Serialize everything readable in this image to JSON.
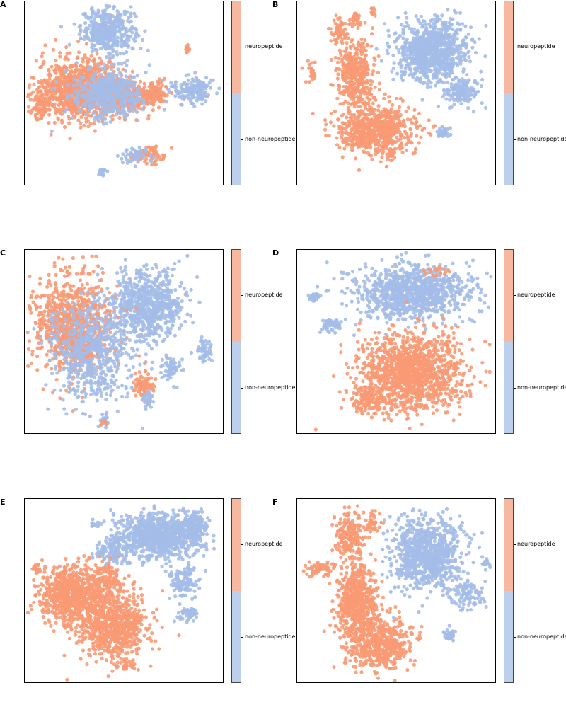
{
  "colors": {
    "neuropeptide": "#f89a74",
    "non_neuropeptide": "#a4bde8",
    "cbar_neuropeptide": "#f6b9a0",
    "cbar_non_neuropeptide": "#bccfec"
  },
  "chart_data": [
    {
      "type": "scatter",
      "panel": "A",
      "legend_labels": [
        "neuropeptide",
        "non-neuropeptide"
      ],
      "clusters": [
        {
          "label": "non-neuropeptide",
          "cx": 0.42,
          "cy": 0.84,
          "sx": 0.09,
          "sy": 0.08,
          "n": 420
        },
        {
          "label": "non-neuropeptide",
          "cx": 0.85,
          "cy": 0.52,
          "sx": 0.07,
          "sy": 0.05,
          "n": 170
        },
        {
          "label": "neuropeptide",
          "cx": 0.27,
          "cy": 0.52,
          "sx": 0.14,
          "sy": 0.11,
          "n": 900
        },
        {
          "label": "neuropeptide",
          "cx": 0.52,
          "cy": 0.49,
          "sx": 0.1,
          "sy": 0.06,
          "n": 300
        },
        {
          "label": "non-neuropeptide",
          "cx": 0.42,
          "cy": 0.5,
          "sx": 0.12,
          "sy": 0.09,
          "n": 500
        },
        {
          "label": "neuropeptide",
          "cx": 0.08,
          "cy": 0.42,
          "sx": 0.03,
          "sy": 0.05,
          "n": 70
        },
        {
          "label": "neuropeptide",
          "cx": 0.66,
          "cy": 0.49,
          "sx": 0.04,
          "sy": 0.04,
          "n": 100
        },
        {
          "label": "neuropeptide",
          "cx": 0.61,
          "cy": 0.16,
          "sx": 0.07,
          "sy": 0.03,
          "n": 80
        },
        {
          "label": "non-neuropeptide",
          "cx": 0.56,
          "cy": 0.16,
          "sx": 0.05,
          "sy": 0.03,
          "n": 50
        },
        {
          "label": "neuropeptide",
          "cx": 0.82,
          "cy": 0.74,
          "sx": 0.01,
          "sy": 0.015,
          "n": 12
        },
        {
          "label": "non-neuropeptide",
          "cx": 0.39,
          "cy": 0.07,
          "sx": 0.015,
          "sy": 0.015,
          "n": 15
        }
      ]
    },
    {
      "type": "scatter",
      "panel": "B",
      "legend_labels": [
        "neuropeptide",
        "non-neuropeptide"
      ],
      "clusters": [
        {
          "label": "non-neuropeptide",
          "cx": 0.68,
          "cy": 0.73,
          "sx": 0.12,
          "sy": 0.11,
          "n": 900
        },
        {
          "label": "non-neuropeptide",
          "cx": 0.84,
          "cy": 0.51,
          "sx": 0.06,
          "sy": 0.05,
          "n": 140
        },
        {
          "label": "non-neuropeptide",
          "cx": 0.74,
          "cy": 0.28,
          "sx": 0.02,
          "sy": 0.02,
          "n": 40
        },
        {
          "label": "neuropeptide",
          "cx": 0.29,
          "cy": 0.6,
          "sx": 0.06,
          "sy": 0.13,
          "n": 400
        },
        {
          "label": "neuropeptide",
          "cx": 0.4,
          "cy": 0.3,
          "sx": 0.13,
          "sy": 0.1,
          "n": 700
        },
        {
          "label": "neuropeptide",
          "cx": 0.21,
          "cy": 0.84,
          "sx": 0.03,
          "sy": 0.04,
          "n": 60
        },
        {
          "label": "neuropeptide",
          "cx": 0.29,
          "cy": 0.9,
          "sx": 0.02,
          "sy": 0.03,
          "n": 30
        },
        {
          "label": "neuropeptide",
          "cx": 0.07,
          "cy": 0.62,
          "sx": 0.015,
          "sy": 0.05,
          "n": 25
        },
        {
          "label": "neuropeptide",
          "cx": 0.38,
          "cy": 0.94,
          "sx": 0.01,
          "sy": 0.02,
          "n": 12
        }
      ]
    },
    {
      "type": "scatter",
      "panel": "C",
      "legend_labels": [
        "neuropeptide",
        "non-neuropeptide"
      ],
      "clusters": [
        {
          "label": "non-neuropeptide",
          "cx": 0.62,
          "cy": 0.7,
          "sx": 0.12,
          "sy": 0.13,
          "n": 700
        },
        {
          "label": "non-neuropeptide",
          "cx": 0.9,
          "cy": 0.45,
          "sx": 0.03,
          "sy": 0.04,
          "n": 50
        },
        {
          "label": "non-neuropeptide",
          "cx": 0.74,
          "cy": 0.35,
          "sx": 0.03,
          "sy": 0.05,
          "n": 60
        },
        {
          "label": "neuropeptide",
          "cx": 0.24,
          "cy": 0.58,
          "sx": 0.13,
          "sy": 0.18,
          "n": 900
        },
        {
          "label": "non-neuropeptide",
          "cx": 0.33,
          "cy": 0.45,
          "sx": 0.14,
          "sy": 0.18,
          "n": 650
        },
        {
          "label": "neuropeptide",
          "cx": 0.6,
          "cy": 0.27,
          "sx": 0.04,
          "sy": 0.06,
          "n": 90
        },
        {
          "label": "non-neuropeptide",
          "cx": 0.62,
          "cy": 0.18,
          "sx": 0.02,
          "sy": 0.03,
          "n": 30
        },
        {
          "label": "non-neuropeptide",
          "cx": 0.4,
          "cy": 0.08,
          "sx": 0.015,
          "sy": 0.03,
          "n": 20
        },
        {
          "label": "neuropeptide",
          "cx": 0.4,
          "cy": 0.06,
          "sx": 0.01,
          "sy": 0.02,
          "n": 8
        }
      ]
    },
    {
      "type": "scatter",
      "panel": "D",
      "legend_labels": [
        "neuropeptide",
        "non-neuropeptide"
      ],
      "clusters": [
        {
          "label": "non-neuropeptide",
          "cx": 0.58,
          "cy": 0.77,
          "sx": 0.2,
          "sy": 0.1,
          "n": 1000
        },
        {
          "label": "non-neuropeptide",
          "cx": 0.17,
          "cy": 0.59,
          "sx": 0.04,
          "sy": 0.03,
          "n": 60
        },
        {
          "label": "non-neuropeptide",
          "cx": 0.09,
          "cy": 0.74,
          "sx": 0.02,
          "sy": 0.015,
          "n": 30
        },
        {
          "label": "neuropeptide",
          "cx": 0.58,
          "cy": 0.33,
          "sx": 0.17,
          "sy": 0.14,
          "n": 1300
        },
        {
          "label": "neuropeptide",
          "cx": 0.72,
          "cy": 0.88,
          "sx": 0.05,
          "sy": 0.03,
          "n": 20
        },
        {
          "label": "neuropeptide",
          "cx": 0.35,
          "cy": 0.18,
          "sx": 0.06,
          "sy": 0.05,
          "n": 150
        }
      ]
    },
    {
      "type": "scatter",
      "panel": "E",
      "legend_labels": [
        "neuropeptide",
        "non-neuropeptide"
      ],
      "clusters": [
        {
          "label": "non-neuropeptide",
          "cx": 0.67,
          "cy": 0.8,
          "sx": 0.14,
          "sy": 0.08,
          "n": 900
        },
        {
          "label": "non-neuropeptide",
          "cx": 0.86,
          "cy": 0.86,
          "sx": 0.04,
          "sy": 0.05,
          "n": 150
        },
        {
          "label": "non-neuropeptide",
          "cx": 0.8,
          "cy": 0.55,
          "sx": 0.05,
          "sy": 0.06,
          "n": 120
        },
        {
          "label": "non-neuropeptide",
          "cx": 0.83,
          "cy": 0.37,
          "sx": 0.03,
          "sy": 0.03,
          "n": 50
        },
        {
          "label": "non-neuropeptide",
          "cx": 0.44,
          "cy": 0.72,
          "sx": 0.05,
          "sy": 0.06,
          "n": 120
        },
        {
          "label": "non-neuropeptide",
          "cx": 0.36,
          "cy": 0.86,
          "sx": 0.02,
          "sy": 0.01,
          "n": 12
        },
        {
          "label": "neuropeptide",
          "cx": 0.24,
          "cy": 0.48,
          "sx": 0.12,
          "sy": 0.1,
          "n": 800
        },
        {
          "label": "neuropeptide",
          "cx": 0.45,
          "cy": 0.3,
          "sx": 0.12,
          "sy": 0.13,
          "n": 700
        },
        {
          "label": "neuropeptide",
          "cx": 0.42,
          "cy": 0.56,
          "sx": 0.04,
          "sy": 0.07,
          "n": 100
        },
        {
          "label": "neuropeptide",
          "cx": 0.06,
          "cy": 0.62,
          "sx": 0.02,
          "sy": 0.02,
          "n": 25
        },
        {
          "label": "neuropeptide",
          "cx": 0.52,
          "cy": 0.09,
          "sx": 0.04,
          "sy": 0.02,
          "n": 25
        }
      ]
    },
    {
      "type": "scatter",
      "panel": "F",
      "legend_labels": [
        "neuropeptide",
        "non-neuropeptide"
      ],
      "clusters": [
        {
          "label": "non-neuropeptide",
          "cx": 0.65,
          "cy": 0.7,
          "sx": 0.12,
          "sy": 0.13,
          "n": 850
        },
        {
          "label": "non-neuropeptide",
          "cx": 0.85,
          "cy": 0.48,
          "sx": 0.06,
          "sy": 0.05,
          "n": 100
        },
        {
          "label": "non-neuropeptide",
          "cx": 0.95,
          "cy": 0.65,
          "sx": 0.015,
          "sy": 0.02,
          "n": 15
        },
        {
          "label": "non-neuropeptide",
          "cx": 0.77,
          "cy": 0.26,
          "sx": 0.02,
          "sy": 0.02,
          "n": 35
        },
        {
          "label": "neuropeptide",
          "cx": 0.3,
          "cy": 0.43,
          "sx": 0.07,
          "sy": 0.15,
          "n": 600
        },
        {
          "label": "neuropeptide",
          "cx": 0.42,
          "cy": 0.22,
          "sx": 0.1,
          "sy": 0.1,
          "n": 500
        },
        {
          "label": "neuropeptide",
          "cx": 0.26,
          "cy": 0.8,
          "sx": 0.05,
          "sy": 0.08,
          "n": 180
        },
        {
          "label": "neuropeptide",
          "cx": 0.12,
          "cy": 0.62,
          "sx": 0.05,
          "sy": 0.03,
          "n": 60
        },
        {
          "label": "neuropeptide",
          "cx": 0.38,
          "cy": 0.87,
          "sx": 0.03,
          "sy": 0.04,
          "n": 40
        }
      ]
    }
  ]
}
